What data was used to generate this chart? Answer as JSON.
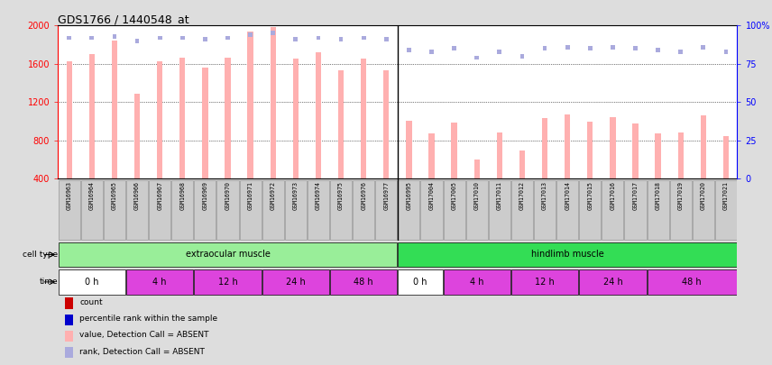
{
  "title": "GDS1766 / 1440548_at",
  "samples": [
    "GSM16963",
    "GSM16964",
    "GSM16965",
    "GSM16966",
    "GSM16967",
    "GSM16968",
    "GSM16969",
    "GSM16970",
    "GSM16971",
    "GSM16972",
    "GSM16973",
    "GSM16974",
    "GSM16975",
    "GSM16976",
    "GSM16977",
    "GSM16995",
    "GSM17004",
    "GSM17005",
    "GSM17010",
    "GSM17011",
    "GSM17012",
    "GSM17013",
    "GSM17014",
    "GSM17015",
    "GSM17016",
    "GSM17017",
    "GSM17018",
    "GSM17019",
    "GSM17020",
    "GSM17021"
  ],
  "bar_values": [
    1630,
    1700,
    1840,
    1290,
    1625,
    1660,
    1565,
    1660,
    1940,
    1980,
    1655,
    1720,
    1530,
    1655,
    1530,
    1010,
    870,
    990,
    600,
    880,
    700,
    1030,
    1070,
    1000,
    1040,
    980,
    870,
    880,
    1060,
    850
  ],
  "rank_values": [
    92,
    92,
    93,
    90,
    92,
    92,
    91,
    92,
    94,
    95,
    91,
    92,
    91,
    92,
    91,
    84,
    83,
    85,
    79,
    83,
    80,
    85,
    86,
    85,
    86,
    85,
    84,
    83,
    86,
    83
  ],
  "bar_absent": [
    true,
    true,
    true,
    true,
    true,
    true,
    true,
    true,
    true,
    true,
    true,
    true,
    true,
    true,
    true,
    true,
    true,
    true,
    true,
    true,
    true,
    true,
    true,
    true,
    true,
    true,
    true,
    true,
    true,
    true
  ],
  "rank_absent": [
    true,
    true,
    true,
    true,
    true,
    true,
    true,
    true,
    true,
    true,
    true,
    true,
    true,
    true,
    true,
    true,
    true,
    true,
    true,
    true,
    true,
    true,
    true,
    true,
    true,
    true,
    true,
    true,
    true,
    true
  ],
  "cell_types": [
    {
      "label": "extraocular muscle",
      "start": 0,
      "end": 15,
      "color": "#99EE99"
    },
    {
      "label": "hindlimb muscle",
      "start": 15,
      "end": 30,
      "color": "#33DD55"
    }
  ],
  "time_groups": [
    {
      "label": "0 h",
      "start": 0,
      "end": 3,
      "color": "#FFFFFF"
    },
    {
      "label": "4 h",
      "start": 3,
      "end": 6,
      "color": "#DD44DD"
    },
    {
      "label": "12 h",
      "start": 6,
      "end": 9,
      "color": "#DD44DD"
    },
    {
      "label": "24 h",
      "start": 9,
      "end": 12,
      "color": "#DD44DD"
    },
    {
      "label": "48 h",
      "start": 12,
      "end": 15,
      "color": "#DD44DD"
    },
    {
      "label": "0 h",
      "start": 15,
      "end": 17,
      "color": "#FFFFFF"
    },
    {
      "label": "4 h",
      "start": 17,
      "end": 20,
      "color": "#DD44DD"
    },
    {
      "label": "12 h",
      "start": 20,
      "end": 23,
      "color": "#DD44DD"
    },
    {
      "label": "24 h",
      "start": 23,
      "end": 26,
      "color": "#DD44DD"
    },
    {
      "label": "48 h",
      "start": 26,
      "end": 30,
      "color": "#DD44DD"
    }
  ],
  "ylim_left": [
    400,
    2000
  ],
  "ylim_right": [
    0,
    100
  ],
  "yticks_left": [
    400,
    800,
    1200,
    1600,
    2000
  ],
  "yticks_right": [
    0,
    25,
    50,
    75,
    100
  ],
  "bar_color_absent": "#FFB0B0",
  "rank_color_absent": "#AAAADD",
  "background_color": "#DDDDDD",
  "plot_bg_color": "#FFFFFF",
  "label_box_color": "#CCCCCC",
  "legend_items": [
    {
      "label": "count",
      "color": "#CC0000"
    },
    {
      "label": "percentile rank within the sample",
      "color": "#0000CC"
    },
    {
      "label": "value, Detection Call = ABSENT",
      "color": "#FFB0B0"
    },
    {
      "label": "rank, Detection Call = ABSENT",
      "color": "#AAAADD"
    }
  ]
}
